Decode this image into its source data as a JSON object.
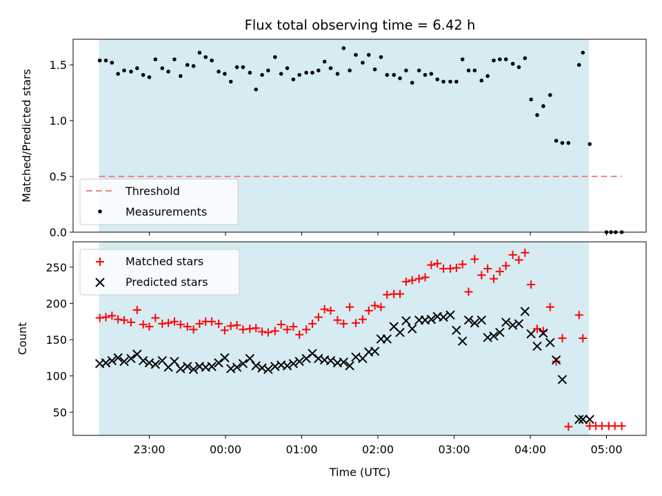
{
  "chart_data": {
    "title": "Flux total observing time = 6.42 h",
    "xlabel": "Time (UTC)",
    "x_tick_labels": [
      "23:00",
      "00:00",
      "01:00",
      "02:00",
      "03:00",
      "04:00",
      "05:00"
    ],
    "x_tick_hours": [
      23,
      24,
      25,
      26,
      27,
      28,
      29
    ],
    "x_range_hours": [
      22.0,
      29.52
    ],
    "observing_window_hours": [
      22.34,
      28.77
    ],
    "colors": {
      "window": "#add8e6",
      "threshold": "#f08080",
      "measurements": "#000000",
      "matched": "#ff0000",
      "predicted": "#000000"
    },
    "charts": [
      {
        "type": "scatter",
        "ylabel": "Matched/Predicted stars",
        "ylim": [
          0,
          1.73
        ],
        "y_ticks": [
          0.0,
          0.5,
          1.0,
          1.5
        ],
        "y_tick_labels": [
          "0.0",
          "0.5",
          "1.0",
          "1.5"
        ],
        "legend_position": "lower-left",
        "threshold": {
          "name": "Threshold",
          "value": 0.5,
          "x_range": [
            22.34,
            29.2
          ]
        },
        "series": [
          {
            "name": "Measurements",
            "marker": "dot",
            "x": [
              22.35,
              22.43,
              22.51,
              22.59,
              22.67,
              22.76,
              22.84,
              22.92,
              23.0,
              23.08,
              23.17,
              23.25,
              23.33,
              23.41,
              23.5,
              23.58,
              23.66,
              23.74,
              23.82,
              23.91,
              23.99,
              24.07,
              24.15,
              24.23,
              24.32,
              24.4,
              24.48,
              24.56,
              24.65,
              24.73,
              24.81,
              24.89,
              24.97,
              25.06,
              25.14,
              25.22,
              25.3,
              25.38,
              25.47,
              25.55,
              25.63,
              25.71,
              25.8,
              25.88,
              25.96,
              26.04,
              26.12,
              26.21,
              26.29,
              26.37,
              26.45,
              26.54,
              26.62,
              26.7,
              26.78,
              26.86,
              26.95,
              27.03,
              27.11,
              27.19,
              27.27,
              27.36,
              27.44,
              27.52,
              27.6,
              27.68,
              27.77,
              27.85,
              27.93,
              28.01,
              28.09,
              28.17,
              28.26,
              28.34,
              28.42,
              28.5,
              28.64,
              28.69,
              28.78,
              29.0,
              29.06,
              29.12,
              29.2
            ],
            "y": [
              1.54,
              1.54,
              1.52,
              1.42,
              1.45,
              1.44,
              1.47,
              1.41,
              1.39,
              1.55,
              1.47,
              1.44,
              1.55,
              1.4,
              1.5,
              1.49,
              1.61,
              1.57,
              1.54,
              1.44,
              1.42,
              1.35,
              1.48,
              1.48,
              1.43,
              1.28,
              1.41,
              1.45,
              1.57,
              1.42,
              1.47,
              1.37,
              1.41,
              1.43,
              1.43,
              1.45,
              1.53,
              1.47,
              1.42,
              1.65,
              1.45,
              1.59,
              1.52,
              1.59,
              1.46,
              1.57,
              1.41,
              1.41,
              1.38,
              1.45,
              1.34,
              1.45,
              1.41,
              1.42,
              1.37,
              1.35,
              1.35,
              1.35,
              1.55,
              1.45,
              1.45,
              1.36,
              1.4,
              1.54,
              1.55,
              1.55,
              1.51,
              1.48,
              1.56,
              1.19,
              1.05,
              1.13,
              1.23,
              0.82,
              0.8,
              0.8,
              1.5,
              1.61,
              0.79,
              0.0,
              0.0,
              0.0,
              0.0
            ]
          }
        ]
      },
      {
        "type": "scatter",
        "ylabel": "Count",
        "ylim": [
          18,
          285
        ],
        "y_ticks": [
          50,
          100,
          150,
          200,
          250
        ],
        "y_tick_labels": [
          "50",
          "100",
          "150",
          "200",
          "250"
        ],
        "legend_position": "upper-left",
        "series": [
          {
            "name": "Matched stars",
            "marker": "plus",
            "x": [
              22.35,
              22.43,
              22.51,
              22.59,
              22.67,
              22.76,
              22.84,
              22.92,
              23.0,
              23.08,
              23.17,
              23.25,
              23.33,
              23.41,
              23.5,
              23.58,
              23.66,
              23.74,
              23.82,
              23.91,
              23.99,
              24.07,
              24.15,
              24.23,
              24.32,
              24.4,
              24.48,
              24.56,
              24.65,
              24.73,
              24.81,
              24.89,
              24.97,
              25.06,
              25.14,
              25.22,
              25.3,
              25.38,
              25.47,
              25.55,
              25.63,
              25.71,
              25.8,
              25.88,
              25.96,
              26.04,
              26.12,
              26.21,
              26.29,
              26.37,
              26.45,
              26.54,
              26.62,
              26.7,
              26.78,
              26.86,
              26.95,
              27.03,
              27.11,
              27.19,
              27.27,
              27.36,
              27.44,
              27.52,
              27.6,
              27.68,
              27.77,
              27.85,
              27.93,
              28.01,
              28.09,
              28.17,
              28.26,
              28.34,
              28.42,
              28.5,
              28.64,
              28.69,
              28.78,
              28.86,
              28.94,
              29.03,
              29.11,
              29.2
            ],
            "y": [
              180,
              181,
              183,
              178,
              177,
              174,
              191,
              171,
              168,
              180,
              172,
              173,
              175,
              171,
              168,
              164,
              172,
              175,
              175,
              172,
              163,
              169,
              170,
              164,
              165,
              166,
              161,
              160,
              162,
              171,
              164,
              168,
              157,
              164,
              172,
              181,
              192,
              190,
              177,
              172,
              195,
              173,
              178,
              190,
              197,
              195,
              212,
              213,
              213,
              230,
              232,
              234,
              236,
              253,
              255,
              248,
              248,
              249,
              254,
              216,
              261,
              239,
              248,
              234,
              244,
              252,
              267,
              260,
              270,
              226,
              165,
              162,
              195,
              120,
              152,
              30,
              184,
              152,
              31,
              31,
              31,
              31,
              31,
              31
            ]
          },
          {
            "name": "Predicted stars",
            "marker": "x",
            "x": [
              22.35,
              22.43,
              22.51,
              22.59,
              22.67,
              22.76,
              22.84,
              22.92,
              23.0,
              23.08,
              23.17,
              23.25,
              23.33,
              23.41,
              23.5,
              23.58,
              23.66,
              23.74,
              23.82,
              23.91,
              23.99,
              24.07,
              24.15,
              24.23,
              24.32,
              24.4,
              24.48,
              24.56,
              24.65,
              24.73,
              24.81,
              24.89,
              24.97,
              25.06,
              25.14,
              25.22,
              25.3,
              25.38,
              25.47,
              25.55,
              25.63,
              25.71,
              25.8,
              25.88,
              25.96,
              26.04,
              26.12,
              26.21,
              26.29,
              26.37,
              26.45,
              26.54,
              26.62,
              26.7,
              26.78,
              26.86,
              26.95,
              27.03,
              27.11,
              27.19,
              27.27,
              27.36,
              27.44,
              27.52,
              27.6,
              27.68,
              27.77,
              27.85,
              27.93,
              28.01,
              28.09,
              28.17,
              28.26,
              28.34,
              28.42,
              28.64,
              28.69,
              28.78
            ],
            "y": [
              117,
              118,
              121,
              125,
              120,
              124,
              130,
              121,
              118,
              116,
              121,
              112,
              120,
              110,
              113,
              109,
              113,
              112,
              113,
              118,
              125,
              110,
              112,
              117,
              124,
              114,
              111,
              109,
              113,
              115,
              114,
              117,
              120,
              124,
              131,
              124,
              122,
              121,
              118,
              119,
              114,
              126,
              124,
              133,
              134,
              151,
              151,
              168,
              160,
              176,
              165,
              177,
              177,
              178,
              182,
              181,
              184,
              163,
              148,
              177,
              173,
              177,
              153,
              155,
              160,
              174,
              170,
              172,
              189,
              158,
              141,
              159,
              146,
              122,
              95,
              40,
              40,
              40
            ]
          }
        ]
      }
    ],
    "legend": {
      "threshold_label": "Threshold",
      "measurements_label": "Measurements",
      "matched_label": "Matched stars",
      "predicted_label": "Predicted stars"
    }
  }
}
